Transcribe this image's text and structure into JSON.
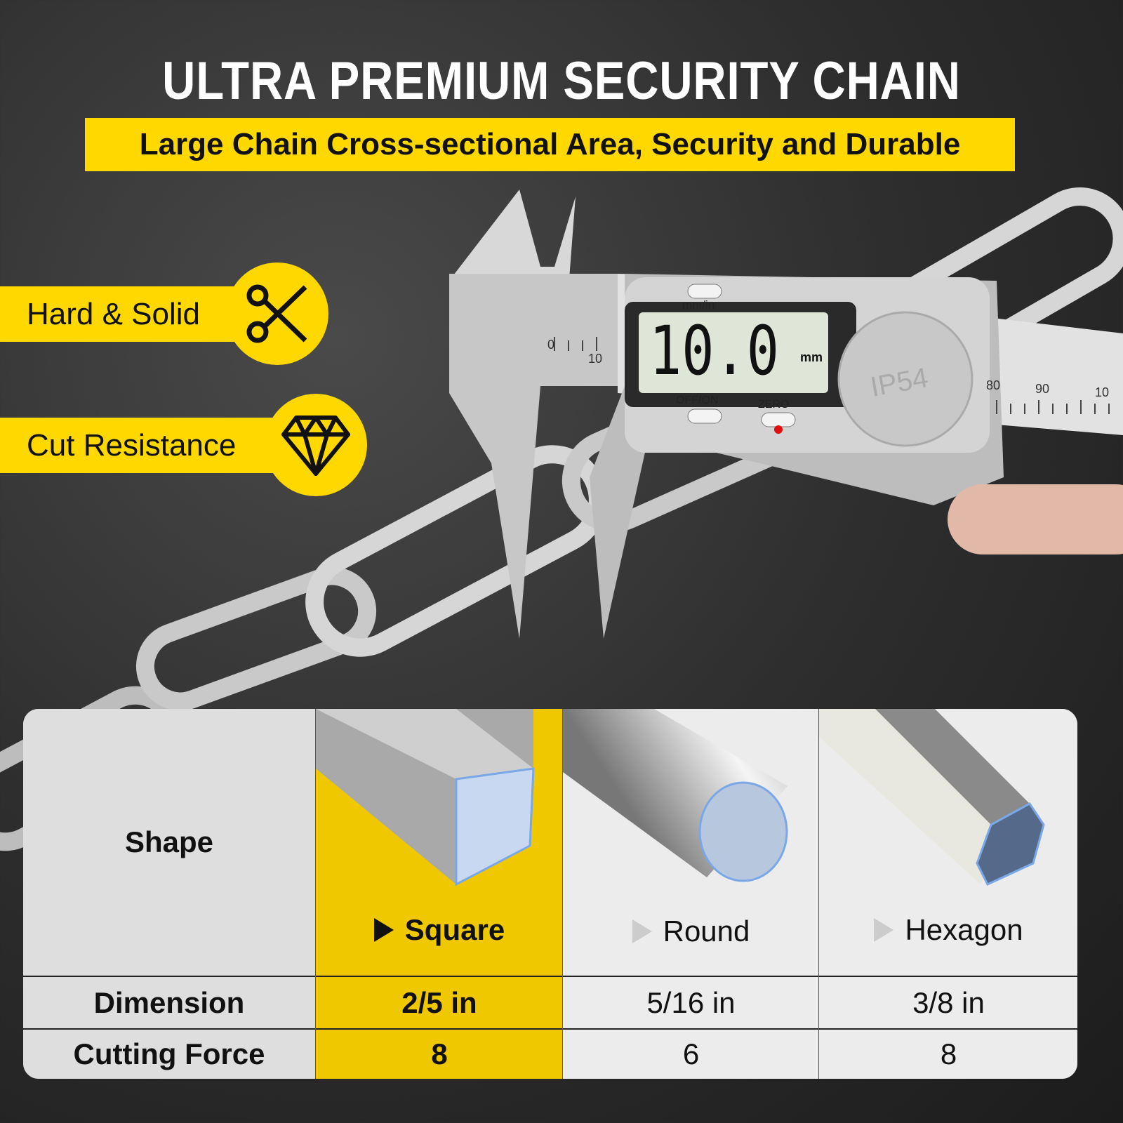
{
  "title": "ULTRA PREMIUM SECURITY CHAIN",
  "subtitle": "Large Chain Cross-sectional Area, Security and Durable",
  "features": [
    {
      "label": "Hard & Solid",
      "icon": "scissors-icon"
    },
    {
      "label": "Cut Resistance",
      "icon": "diamond-icon"
    }
  ],
  "caliper": {
    "unit_button": "mm/in",
    "reading": "10.0",
    "reading_unit": "mm",
    "power_button": "OFF/ON",
    "zero_button": "ZERO",
    "rating": "IP54",
    "scale_left": [
      "0",
      "10"
    ],
    "scale_right": [
      "80",
      "90",
      "10"
    ]
  },
  "table": {
    "row_labels": [
      "Shape",
      "Dimension",
      "Cutting Force"
    ],
    "columns": [
      {
        "shape": "Square",
        "dimension": "2/5 in",
        "cutting_force": "8",
        "highlighted": true
      },
      {
        "shape": "Round",
        "dimension": "5/16 in",
        "cutting_force": "6",
        "highlighted": false
      },
      {
        "shape": "Hexagon",
        "dimension": "3/8 in",
        "cutting_force": "8",
        "highlighted": false
      }
    ]
  },
  "colors": {
    "accent": "#ffd800",
    "table_highlight": "#f0c800",
    "background": "#2e2e2e"
  }
}
